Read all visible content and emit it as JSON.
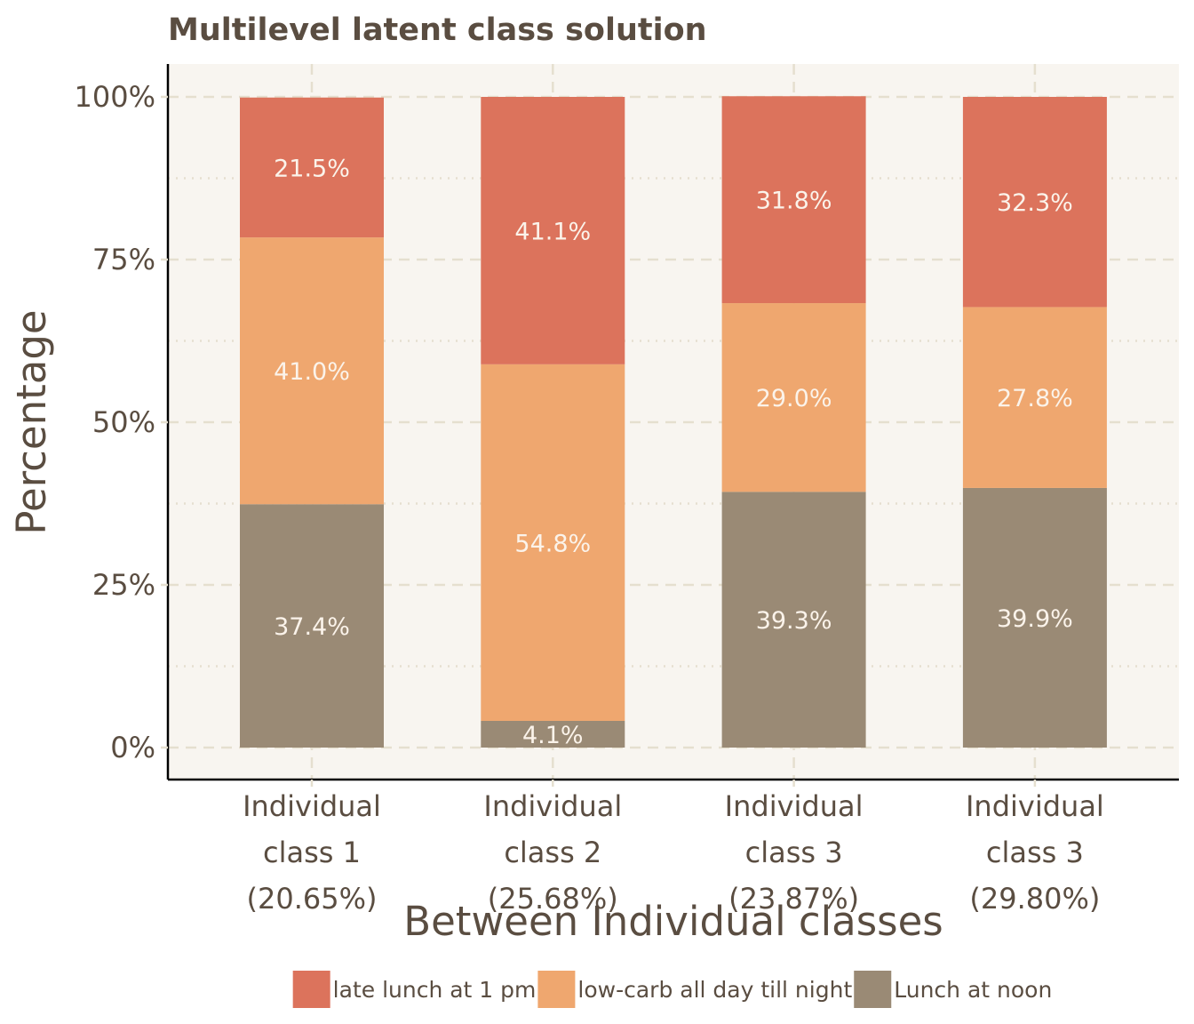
{
  "chart_data": {
    "type": "bar",
    "stacked": true,
    "title": "Multilevel latent class solution",
    "xlabel": "Between Individual classes",
    "ylabel": "Percentage",
    "ylim": [
      0,
      100
    ],
    "y_ticks": [
      "0%",
      "25%",
      "50%",
      "75%",
      "100%"
    ],
    "y_tick_values": [
      0,
      25,
      50,
      75,
      100
    ],
    "categories": [
      [
        "Individual",
        "class 1",
        "(20.65%)"
      ],
      [
        "Individual",
        "class 2",
        "(25.68%)"
      ],
      [
        "Individual",
        "class 3",
        "(23.87%)"
      ],
      [
        "Individual",
        "class 3",
        "(29.80%)"
      ]
    ],
    "series": [
      {
        "name": "Lunch at noon",
        "color": "#9a8a75",
        "values": [
          37.4,
          4.1,
          39.3,
          39.9
        ],
        "labels": [
          "37.4%",
          "4.1%",
          "39.3%",
          "39.9%"
        ]
      },
      {
        "name": "low-carb all day till night",
        "color": "#efa76f",
        "values": [
          41.0,
          54.8,
          29.0,
          27.8
        ],
        "labels": [
          "41.0%",
          "54.8%",
          "29.0%",
          "27.8%"
        ]
      },
      {
        "name": "late lunch at 1 pm",
        "color": "#dc735c",
        "values": [
          21.5,
          41.1,
          31.8,
          32.3
        ],
        "labels": [
          "21.5%",
          "41.1%",
          "31.8%",
          "32.3%"
        ]
      }
    ],
    "legend": {
      "position": "bottom",
      "order": [
        "late lunch at 1 pm",
        "low-carb all day till night",
        "Lunch at noon"
      ]
    },
    "grid": true,
    "panel_background": "#f8f5f0",
    "grid_color": "#e5dfcf",
    "text_color": "#5a4d41"
  }
}
